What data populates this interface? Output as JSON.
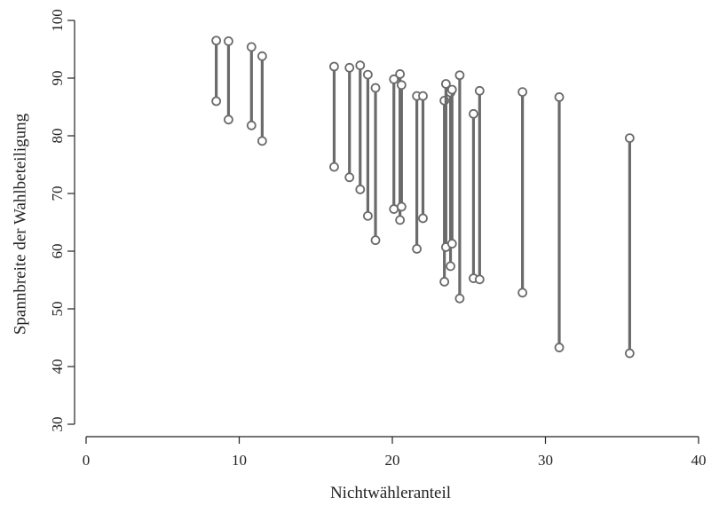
{
  "chart_data": {
    "type": "range",
    "title": "",
    "xlabel": "Nichtwähleranteil",
    "ylabel": "Spannbreite der Wahlbeteiligung",
    "xlim": [
      0,
      40
    ],
    "ylim": [
      30,
      100
    ],
    "xticks": [
      0,
      10,
      20,
      30,
      40
    ],
    "yticks": [
      30,
      40,
      50,
      60,
      70,
      80,
      90,
      100
    ],
    "grid": false,
    "colors": {
      "series": "#6b6b6b",
      "axis": "#222222"
    },
    "ranges": [
      {
        "x": 8.5,
        "low": 86.0,
        "high": 96.5
      },
      {
        "x": 9.3,
        "low": 82.8,
        "high": 96.4
      },
      {
        "x": 10.8,
        "low": 81.8,
        "high": 95.4
      },
      {
        "x": 11.5,
        "low": 79.1,
        "high": 93.8
      },
      {
        "x": 16.2,
        "low": 74.6,
        "high": 92.0
      },
      {
        "x": 17.2,
        "low": 72.8,
        "high": 91.8
      },
      {
        "x": 17.9,
        "low": 70.7,
        "high": 92.2
      },
      {
        "x": 18.4,
        "low": 66.1,
        "high": 90.6
      },
      {
        "x": 18.9,
        "low": 61.9,
        "high": 88.3
      },
      {
        "x": 20.1,
        "low": 67.3,
        "high": 89.8
      },
      {
        "x": 20.5,
        "low": 65.4,
        "high": 90.7
      },
      {
        "x": 20.6,
        "low": 67.7,
        "high": 88.8
      },
      {
        "x": 21.6,
        "low": 60.4,
        "high": 86.9
      },
      {
        "x": 22.0,
        "low": 65.7,
        "high": 86.9
      },
      {
        "x": 23.4,
        "low": 54.7,
        "high": 86.1
      },
      {
        "x": 23.5,
        "low": 60.7,
        "high": 89.0
      },
      {
        "x": 23.8,
        "low": 57.4,
        "high": 87.5
      },
      {
        "x": 23.9,
        "low": 61.3,
        "high": 88.0
      },
      {
        "x": 24.4,
        "low": 51.8,
        "high": 90.5
      },
      {
        "x": 25.3,
        "low": 55.3,
        "high": 83.8
      },
      {
        "x": 25.7,
        "low": 55.1,
        "high": 87.8
      },
      {
        "x": 28.5,
        "low": 52.8,
        "high": 87.6
      },
      {
        "x": 30.9,
        "low": 43.3,
        "high": 86.7
      },
      {
        "x": 35.5,
        "low": 42.3,
        "high": 79.6
      }
    ]
  }
}
